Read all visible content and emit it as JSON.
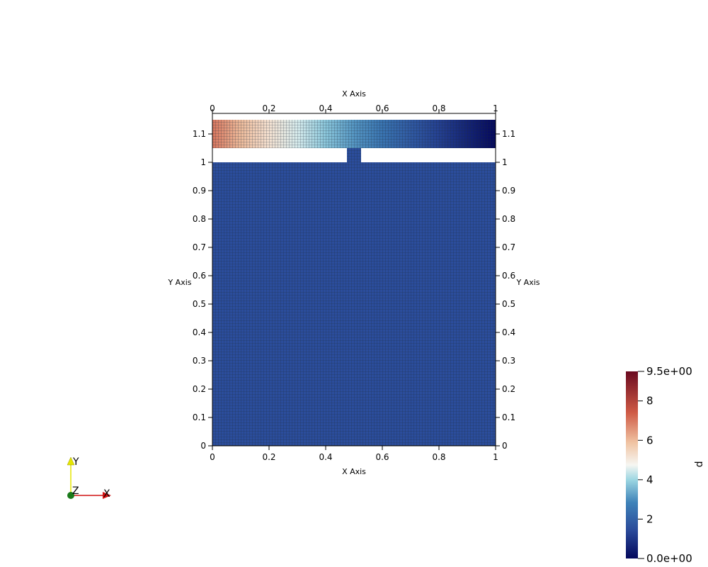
{
  "plot": {
    "top_axis_title": "X Axis",
    "bottom_axis_title": "X Axis",
    "left_axis_title": "Y Axis",
    "right_axis_title": "Y Axis",
    "x_ticks": [
      "0",
      "0.2",
      "0.4",
      "0.6",
      "0.8",
      "1"
    ],
    "x_tick_values": [
      0,
      0.2,
      0.4,
      0.6,
      0.8,
      1
    ],
    "y_ticks": [
      "0",
      "0.1",
      "0.2",
      "0.3",
      "0.4",
      "0.5",
      "0.6",
      "0.7",
      "0.8",
      "0.9",
      "1",
      "1.1"
    ],
    "y_tick_values": [
      0,
      0.1,
      0.2,
      0.3,
      0.4,
      0.5,
      0.6,
      0.7,
      0.8,
      0.9,
      1,
      1.1
    ],
    "x_range": [
      0,
      1
    ],
    "y_range": [
      0,
      1.15
    ],
    "mesh": {
      "cells_x": 100,
      "lower_region": {
        "y_range": [
          0,
          1.0
        ],
        "field_value": 1.5
      },
      "slot_region": {
        "y_range": [
          1.0,
          1.05
        ],
        "x_range": [
          0.475,
          0.525
        ],
        "field_value": 1.5
      },
      "upper_channel": {
        "y_range": [
          1.05,
          1.15
        ],
        "inlet_value": 7.0,
        "outlet_value": 0.0
      },
      "mesh_line_color": "#1e2a3a"
    }
  },
  "colorbar": {
    "title": "p",
    "min_label": "0.0e+00",
    "max_label": "9.5e+00",
    "min": 0.0,
    "max": 9.5,
    "tick_labels": [
      "2",
      "4",
      "6",
      "8"
    ],
    "tick_values": [
      2,
      4,
      6,
      8
    ],
    "colormap_stops": [
      {
        "v": 0.0,
        "c": "#04085c"
      },
      {
        "v": 0.15,
        "c": "#2a4a9a"
      },
      {
        "v": 0.3,
        "c": "#3f83b9"
      },
      {
        "v": 0.42,
        "c": "#9cd6e2"
      },
      {
        "v": 0.5,
        "c": "#f6f6f2"
      },
      {
        "v": 0.62,
        "c": "#f0c3a2"
      },
      {
        "v": 0.78,
        "c": "#cf5a45"
      },
      {
        "v": 1.0,
        "c": "#6a0a20"
      }
    ]
  },
  "orientation_axes": {
    "x_label": "X",
    "y_label": "Y",
    "z_label": "Z",
    "x_color": "#d01414",
    "y_color": "#e6e600",
    "z_color": "#1a7a1a"
  }
}
